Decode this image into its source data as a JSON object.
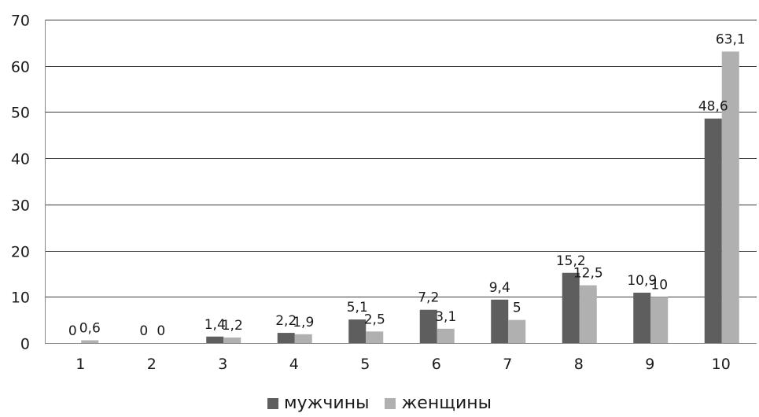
{
  "chart_data": {
    "type": "bar",
    "categories": [
      "1",
      "2",
      "3",
      "4",
      "5",
      "6",
      "7",
      "8",
      "9",
      "10"
    ],
    "series": [
      {
        "name": "мужчины",
        "color": "#5e5e5e",
        "values": [
          0,
          0,
          1.4,
          2.2,
          5.1,
          7.2,
          9.4,
          15.2,
          10.9,
          48.6
        ],
        "labels": [
          "0",
          "0",
          "1,4",
          "2,2",
          "5,1",
          "7,2",
          "9,4",
          "15,2",
          "10,9",
          "48,6"
        ]
      },
      {
        "name": "женщины",
        "color": "#b0b0b0",
        "values": [
          0.6,
          0,
          1.2,
          1.9,
          2.5,
          3.1,
          5,
          12.5,
          10,
          63.1
        ],
        "labels": [
          "0,6",
          "0",
          "1,2",
          "1,9",
          "2,5",
          "3,1",
          "5",
          "12,5",
          "10",
          "63,1"
        ]
      }
    ],
    "ylim": [
      0,
      70
    ],
    "yticks": [
      "0",
      "10",
      "20",
      "30",
      "40",
      "50",
      "60",
      "70"
    ],
    "grid": true,
    "legend_position": "bottom"
  }
}
